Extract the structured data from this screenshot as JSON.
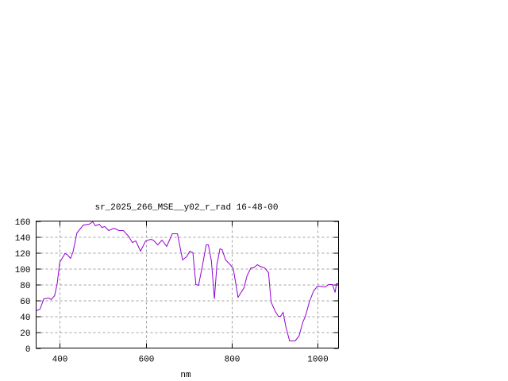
{
  "chart_data": {
    "type": "line",
    "title": "sr_2025_266_MSE__y02_r_rad 16-48-00",
    "xlabel": "nm",
    "ylabel": "",
    "xlim": [
      345,
      1049
    ],
    "ylim": [
      0,
      160
    ],
    "xticks": [
      400,
      600,
      800,
      1000
    ],
    "yticks": [
      0,
      20,
      40,
      60,
      80,
      100,
      120,
      140,
      160
    ],
    "grid": true,
    "line_color": "#9400d3",
    "series": [
      {
        "x": [
          345,
          354,
          363,
          375,
          380,
          388,
          394,
          400,
          412,
          417,
          425,
          431,
          440,
          455,
          468,
          477,
          483,
          492,
          498,
          505,
          514,
          526,
          538,
          548,
          560,
          569,
          577,
          588,
          600,
          612,
          618,
          628,
          638,
          649,
          662,
          674,
          686,
          695,
          703,
          710,
          717,
          723,
          732,
          741,
          746,
          753,
          760,
          766,
          773,
          778,
          786,
          797,
          804,
          815,
          829,
          836,
          845,
          851,
          860,
          866,
          877,
          886,
          892,
          902,
          909,
          914,
          920,
          926,
          935,
          948,
          957,
          966,
          972,
          981,
          991,
          1000,
          1018,
          1026,
          1035,
          1041,
          1044,
          1049
        ],
        "y": [
          47,
          49,
          62,
          63,
          61,
          66,
          81,
          108,
          119,
          118,
          113,
          121,
          145,
          155,
          156,
          159,
          154,
          156,
          152,
          153,
          148,
          151,
          148,
          148,
          141,
          133,
          135,
          122,
          135,
          137,
          136,
          130,
          136,
          128,
          144,
          144,
          111,
          115,
          122,
          120,
          80,
          79,
          103,
          130,
          130,
          110,
          62,
          105,
          125,
          124,
          111,
          105,
          100,
          64,
          76,
          91,
          101,
          101,
          105,
          103,
          101,
          95,
          58,
          46,
          40,
          40,
          45,
          28,
          9,
          9,
          15,
          33,
          40,
          58,
          72,
          78,
          77,
          80,
          80,
          70,
          81,
          81
        ]
      }
    ]
  }
}
